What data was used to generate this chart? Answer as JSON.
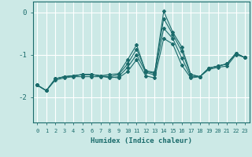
{
  "xlabel": "Humidex (Indice chaleur)",
  "bg_color": "#cce9e6",
  "grid_color": "#ffffff",
  "line_color": "#1a6b6b",
  "xlim": [
    -0.5,
    23.5
  ],
  "ylim": [
    -2.6,
    0.25
  ],
  "xticks": [
    0,
    1,
    2,
    3,
    4,
    5,
    6,
    7,
    8,
    9,
    10,
    11,
    12,
    13,
    14,
    15,
    16,
    17,
    18,
    19,
    20,
    21,
    22,
    23
  ],
  "yticks": [
    0,
    -1,
    -2
  ],
  "lines": [
    {
      "x": [
        0,
        1,
        2,
        3,
        4,
        5,
        6,
        7,
        8,
        9,
        10,
        11,
        12,
        13,
        14,
        15,
        16,
        17,
        18,
        19,
        20,
        21,
        22,
        23
      ],
      "y": [
        -1.72,
        -1.85,
        -1.57,
        -1.52,
        -1.5,
        -1.47,
        -1.47,
        -1.5,
        -1.47,
        -1.45,
        -1.12,
        -0.77,
        -1.4,
        -1.44,
        0.02,
        -0.47,
        -0.82,
        -1.47,
        -1.52,
        -1.32,
        -1.27,
        -1.22,
        -0.97,
        -1.07
      ]
    },
    {
      "x": [
        0,
        1,
        2,
        3,
        4,
        5,
        6,
        7,
        8,
        9,
        10,
        11,
        12,
        13,
        14,
        15,
        16,
        17,
        18,
        19,
        20,
        21,
        22,
        23
      ],
      "y": [
        -1.72,
        -1.85,
        -1.57,
        -1.52,
        -1.5,
        -1.47,
        -1.47,
        -1.5,
        -1.52,
        -1.47,
        -1.22,
        -0.87,
        -1.38,
        -1.42,
        -0.15,
        -0.52,
        -0.92,
        -1.47,
        -1.52,
        -1.32,
        -1.27,
        -1.22,
        -0.97,
        -1.07
      ]
    },
    {
      "x": [
        0,
        1,
        2,
        3,
        4,
        5,
        6,
        7,
        8,
        9,
        10,
        11,
        12,
        13,
        14,
        15,
        16,
        17,
        18,
        19,
        20,
        21,
        22,
        23
      ],
      "y": [
        -1.72,
        -1.85,
        -1.57,
        -1.52,
        -1.5,
        -1.47,
        -1.47,
        -1.5,
        -1.55,
        -1.52,
        -1.3,
        -1.0,
        -1.42,
        -1.48,
        -0.38,
        -0.62,
        -1.08,
        -1.52,
        -1.52,
        -1.32,
        -1.27,
        -1.22,
        -0.97,
        -1.07
      ]
    },
    {
      "x": [
        0,
        1,
        2,
        3,
        4,
        5,
        6,
        7,
        8,
        9,
        10,
        11,
        12,
        13,
        14,
        15,
        16,
        17,
        18,
        19,
        20,
        21,
        22,
        23
      ],
      "y": [
        -1.72,
        -1.85,
        -1.6,
        -1.55,
        -1.52,
        -1.52,
        -1.52,
        -1.52,
        -1.52,
        -1.55,
        -1.4,
        -1.12,
        -1.5,
        -1.55,
        -0.62,
        -0.75,
        -1.25,
        -1.55,
        -1.52,
        -1.35,
        -1.3,
        -1.27,
        -1.0,
        -1.07
      ]
    }
  ]
}
